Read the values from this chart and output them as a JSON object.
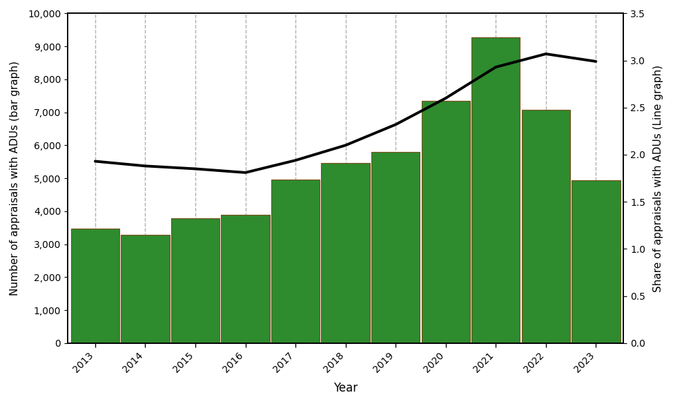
{
  "years": [
    2013,
    2014,
    2015,
    2016,
    2017,
    2018,
    2019,
    2020,
    2021,
    2022,
    2023
  ],
  "bar_values": [
    3480,
    3290,
    3790,
    3890,
    4950,
    5470,
    5790,
    7350,
    9270,
    7080,
    4940
  ],
  "line_values": [
    1.93,
    1.88,
    1.85,
    1.81,
    1.94,
    2.1,
    2.32,
    2.6,
    2.93,
    3.07,
    2.99
  ],
  "bar_color": "#2e8b2e",
  "bar_edge_color": "#7b4f1a",
  "line_color": "#000000",
  "ylabel_left": "Number of appraisals with ADUs (bar graph)",
  "ylabel_right": "Share of appraisals with ADUs (Line graph)",
  "xlabel": "Year",
  "ylim_left": [
    0,
    10000
  ],
  "ylim_right": [
    0.0,
    3.5
  ],
  "yticks_left": [
    0,
    1000,
    2000,
    3000,
    4000,
    5000,
    6000,
    7000,
    8000,
    9000,
    10000
  ],
  "yticks_right": [
    0.0,
    0.5,
    1.0,
    1.5,
    2.0,
    2.5,
    3.0,
    3.5
  ],
  "background_color": "#ffffff",
  "grid_color": "#b0b0b0",
  "line_width": 2.8,
  "bar_width": 0.97
}
